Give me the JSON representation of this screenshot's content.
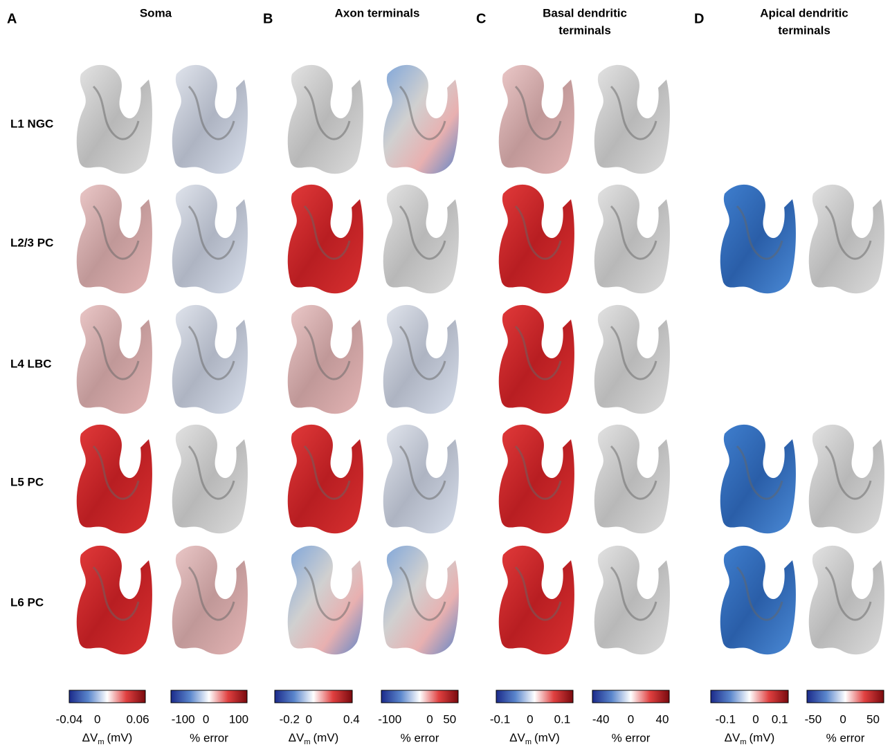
{
  "panels": [
    {
      "letter": "A",
      "title": [
        "Soma"
      ],
      "colorbars": [
        {
          "ticks": [
            "-0.04",
            "0",
            "0.06"
          ],
          "label": {
            "symbol": "ΔV",
            "subscript": "m",
            "unit": "(mV)"
          }
        },
        {
          "ticks": [
            "-100",
            "0",
            "100"
          ],
          "label": {
            "text": "% error"
          }
        }
      ]
    },
    {
      "letter": "B",
      "title": [
        "Axon terminals"
      ],
      "colorbars": [
        {
          "ticks": [
            "-0.2",
            "0",
            "0.4"
          ],
          "label": {
            "symbol": "ΔV",
            "subscript": "m",
            "unit": "(mV)"
          }
        },
        {
          "ticks": [
            "-100",
            "0",
            "50"
          ],
          "label": {
            "text": "% error"
          }
        }
      ]
    },
    {
      "letter": "C",
      "title": [
        "Basal dendritic",
        "terminals"
      ],
      "colorbars": [
        {
          "ticks": [
            "-0.1",
            "0",
            "0.1"
          ],
          "label": {
            "symbol": "ΔV",
            "subscript": "m",
            "unit": "(mV)"
          }
        },
        {
          "ticks": [
            "-40",
            "0",
            "40"
          ],
          "label": {
            "text": "% error"
          }
        }
      ]
    },
    {
      "letter": "D",
      "title": [
        "Apical dendritic",
        "terminals"
      ],
      "colorbars": [
        {
          "ticks": [
            "-0.1",
            "0",
            "0.1"
          ],
          "label": {
            "symbol": "ΔV",
            "subscript": "m",
            "unit": "(mV)"
          }
        },
        {
          "ticks": [
            "-50",
            "0",
            "50"
          ],
          "label": {
            "text": "% error"
          }
        }
      ]
    }
  ],
  "rows": [
    "L1 NGC",
    "L2/3 PC",
    "L4 LBC",
    "L5 PC",
    "L6 PC"
  ]
}
